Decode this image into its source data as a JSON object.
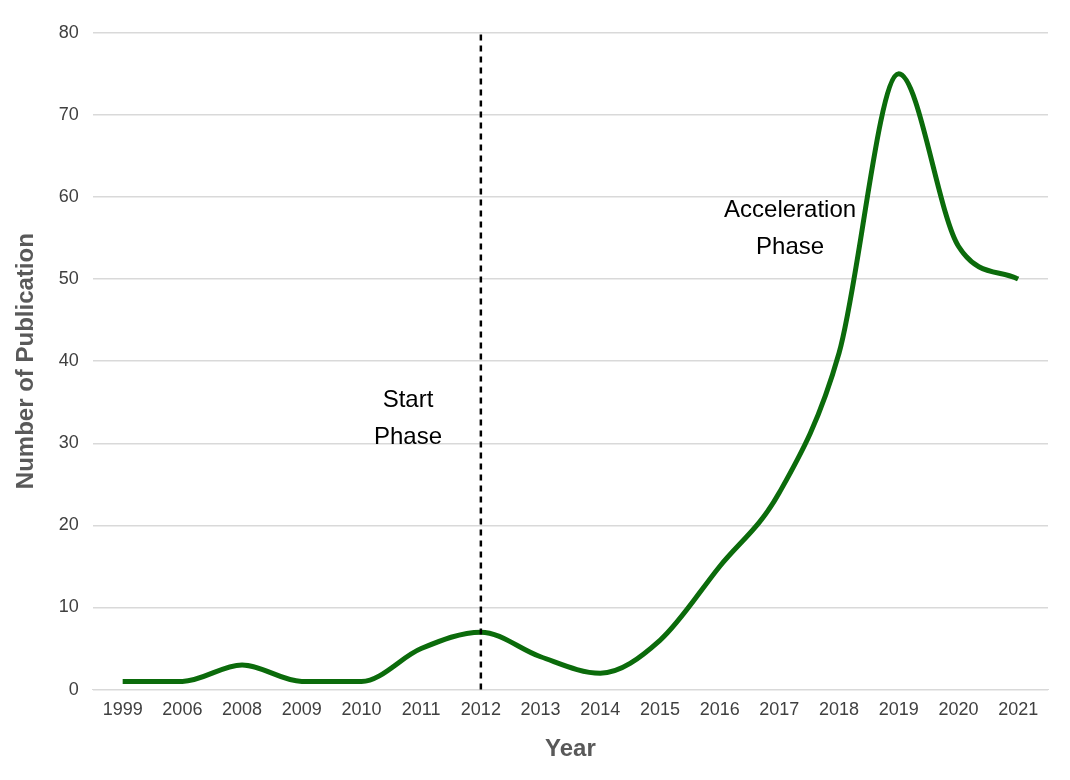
{
  "chart_data": {
    "type": "line",
    "xlabel": "Year",
    "ylabel": "Number of Publication",
    "categories": [
      "1999",
      "2006",
      "2008",
      "2009",
      "2010",
      "2011",
      "2012",
      "2013",
      "2014",
      "2015",
      "2016",
      "2017",
      "2018",
      "2019",
      "2020",
      "2021"
    ],
    "series": [
      {
        "color": "#0b6b0b",
        "values": [
          1,
          1,
          3,
          1,
          1,
          5,
          7,
          4,
          2,
          6,
          15,
          24,
          41,
          75,
          54,
          50
        ]
      }
    ],
    "ylim": [
      0,
      80
    ],
    "yticks": [
      0,
      10,
      20,
      30,
      40,
      50,
      60,
      70,
      80
    ],
    "grid": "y",
    "legend": false,
    "marker": "none",
    "line_style": "solid",
    "ref_lines": [
      {
        "axis": "x",
        "value": "2012",
        "color": "#000000",
        "line_style": "dashed"
      }
    ],
    "annotations": [
      "Start Phase",
      "Acceleration Phase"
    ]
  }
}
